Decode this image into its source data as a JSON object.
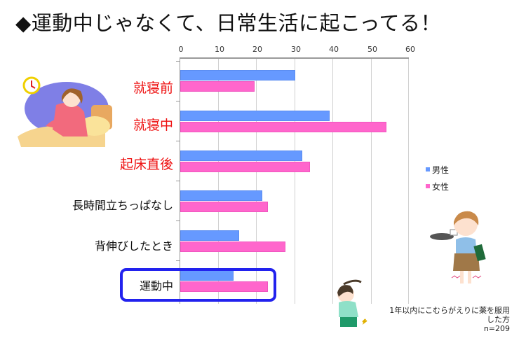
{
  "title": "◆運動中じゃなくて、日常生活に起こってる！",
  "chart_data": {
    "type": "bar",
    "orientation": "horizontal",
    "title": "◆運動中じゃなくて、日常生活に起こってる！",
    "xlabel": "",
    "ylabel": "",
    "xlim": [
      0,
      60
    ],
    "x_ticks": [
      "0",
      "10",
      "20",
      "30",
      "40",
      "50",
      "60"
    ],
    "x_axis_position": "top",
    "grid": true,
    "legend_position": "right",
    "categories": [
      "就寝前",
      "就寝中",
      "起床直後",
      "長時間立ちっぱなし",
      "背伸びしたとき",
      "運動中"
    ],
    "series": [
      {
        "name": "男性",
        "color": "#6699ff",
        "values": [
          30,
          39,
          32,
          21.5,
          15.5,
          14
        ]
      },
      {
        "name": "女性",
        "color": "#ff66cc",
        "values": [
          19.5,
          54,
          34,
          23,
          27.5,
          23
        ]
      }
    ],
    "highlighted_category": "運動中",
    "annotation": "1年以内にこむらがえりに薬を服用した方",
    "sample_size": "n=209"
  },
  "categories": [
    {
      "label": "就寝前",
      "style": "red"
    },
    {
      "label": "就寝中",
      "style": "red"
    },
    {
      "label": "起床直後",
      "style": "red"
    },
    {
      "label": "長時間立ちっぱなし",
      "style": "black"
    },
    {
      "label": "背伸びしたとき",
      "style": "black"
    },
    {
      "label": "運動中",
      "style": "black"
    }
  ],
  "legend": {
    "male": {
      "label": "男性",
      "color": "#6699ff"
    },
    "female": {
      "label": "女性",
      "color": "#ff66cc"
    }
  },
  "note": {
    "line1": "1年以内にこむらがえりに薬を服用した方",
    "line2": "n=209"
  },
  "illustrations": {
    "woman_in_bed": "woman-sitting-in-bed-with-clock",
    "waitress": "woman-holding-tray-with-cramping-legs",
    "girl_exercising": "girl-in-sportswear-with-leg-cramp"
  },
  "highlight_color": "#2222ee",
  "category_label_red": "#ee1111"
}
